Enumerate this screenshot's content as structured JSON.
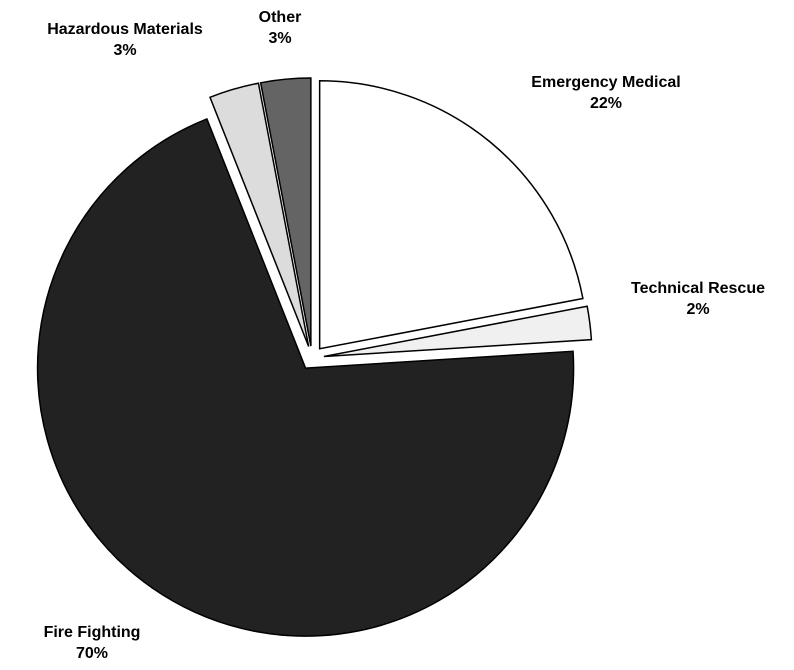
{
  "chart_data": {
    "type": "pie",
    "categories": [
      "Emergency Medical",
      "Technical Rescue",
      "Fire Fighting",
      "Hazardous Materials",
      "Other"
    ],
    "values": [
      22,
      2,
      70,
      3,
      3
    ],
    "value_labels": [
      "22%",
      "2%",
      "70%",
      "3%",
      "3%"
    ],
    "colors": [
      "#ffffff",
      "#f0f0f0",
      "#222222",
      "#dcdcdc",
      "#646464"
    ]
  }
}
